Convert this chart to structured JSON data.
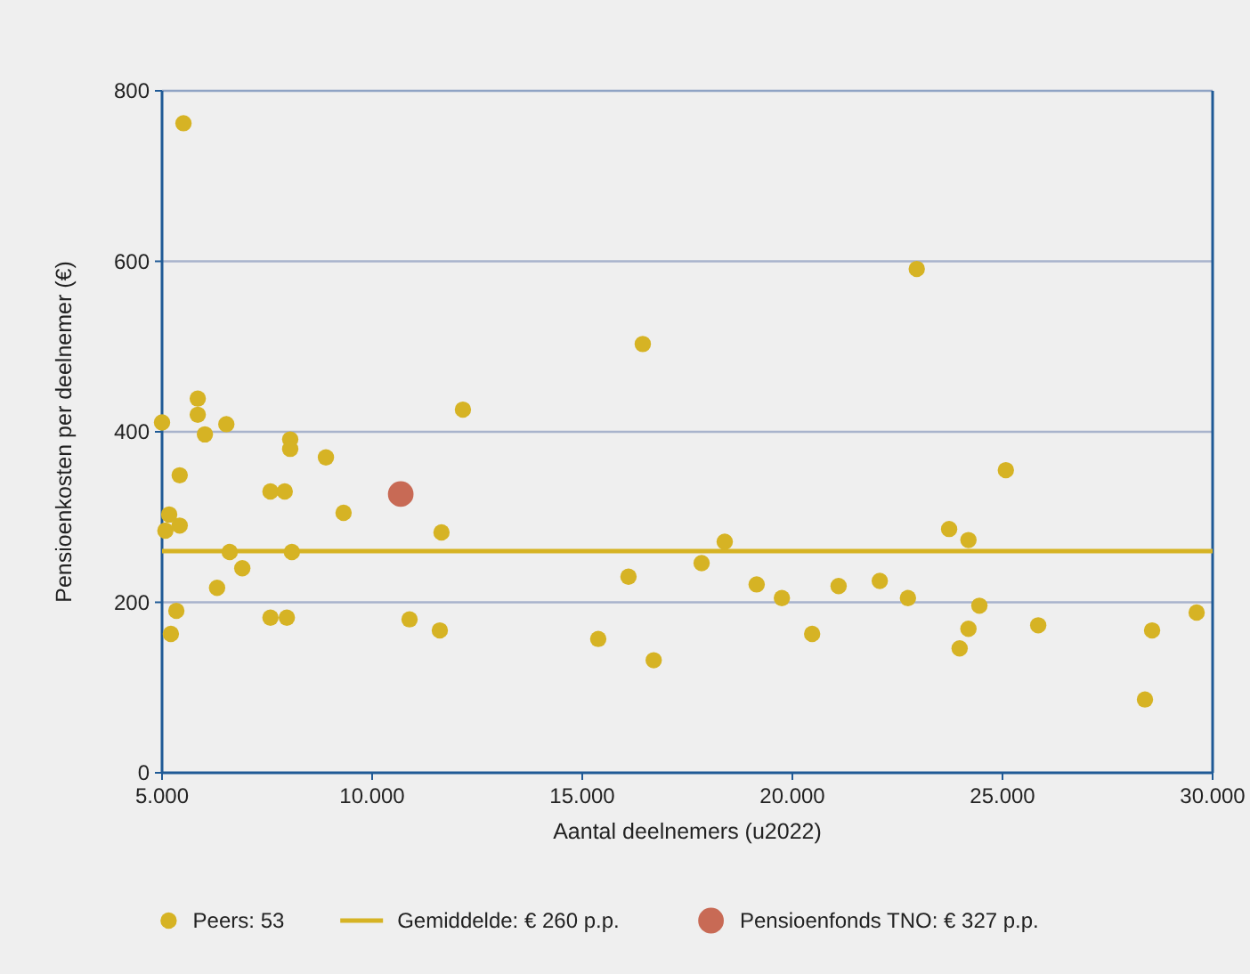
{
  "chart_data": {
    "type": "scatter",
    "xlabel": "Aantal deelnemers (u2022)",
    "ylabel": "Pensioenkosten per deelnemer (€)",
    "xlim": [
      5000,
      30000
    ],
    "xticks": [
      {
        "value": 5000,
        "label": "5.000"
      },
      {
        "value": 10000,
        "label": "10.000"
      },
      {
        "value": 15000,
        "label": "15.000"
      },
      {
        "value": 20000,
        "label": "20.000"
      },
      {
        "value": 25000,
        "label": "25.000"
      },
      {
        "value": 30000,
        "label": "30.000"
      }
    ],
    "ylim": [
      0,
      800
    ],
    "yticks": [
      0,
      200,
      400,
      600,
      800
    ],
    "grid": "y",
    "legend": "bottom",
    "marker": "circle",
    "series": [
      {
        "name": "Peers: 53",
        "color": "#d6b324",
        "x": [
          5510,
          5000,
          5850,
          5850,
          6020,
          6530,
          5420,
          5170,
          5080,
          5420,
          6610,
          6910,
          6310,
          5340,
          5210,
          7580,
          7920,
          8050,
          8050,
          8900,
          9320,
          8090,
          7580,
          7970,
          10890,
          11610,
          11650,
          12160,
          16440,
          15380,
          16100,
          16700,
          17840,
          18390,
          19150,
          19750,
          20470,
          21100,
          22080,
          22750,
          22960,
          23730,
          24190,
          25080,
          24450,
          24190,
          23980,
          25850,
          28390,
          28560,
          29620
        ],
        "values": [
          762,
          411,
          439,
          420,
          397,
          409,
          349,
          303,
          284,
          290,
          259,
          240,
          217,
          190,
          163,
          330,
          330,
          391,
          380,
          370,
          305,
          259,
          182,
          182,
          180,
          167,
          282,
          426,
          503,
          157,
          230,
          132,
          246,
          271,
          221,
          205,
          163,
          219,
          225,
          205,
          591,
          286,
          273,
          355,
          196,
          169,
          146,
          173,
          86,
          167,
          188
        ]
      },
      {
        "name": "Pensioenfonds TNO:  € 327 p.p.",
        "color": "#c86a55",
        "x": [
          10680
        ],
        "values": [
          327
        ]
      }
    ],
    "ref_lines": [
      {
        "axis": "y",
        "value": 260,
        "label": "Gemiddelde: € 260 p.p.",
        "color": "#d6b324"
      }
    ]
  }
}
